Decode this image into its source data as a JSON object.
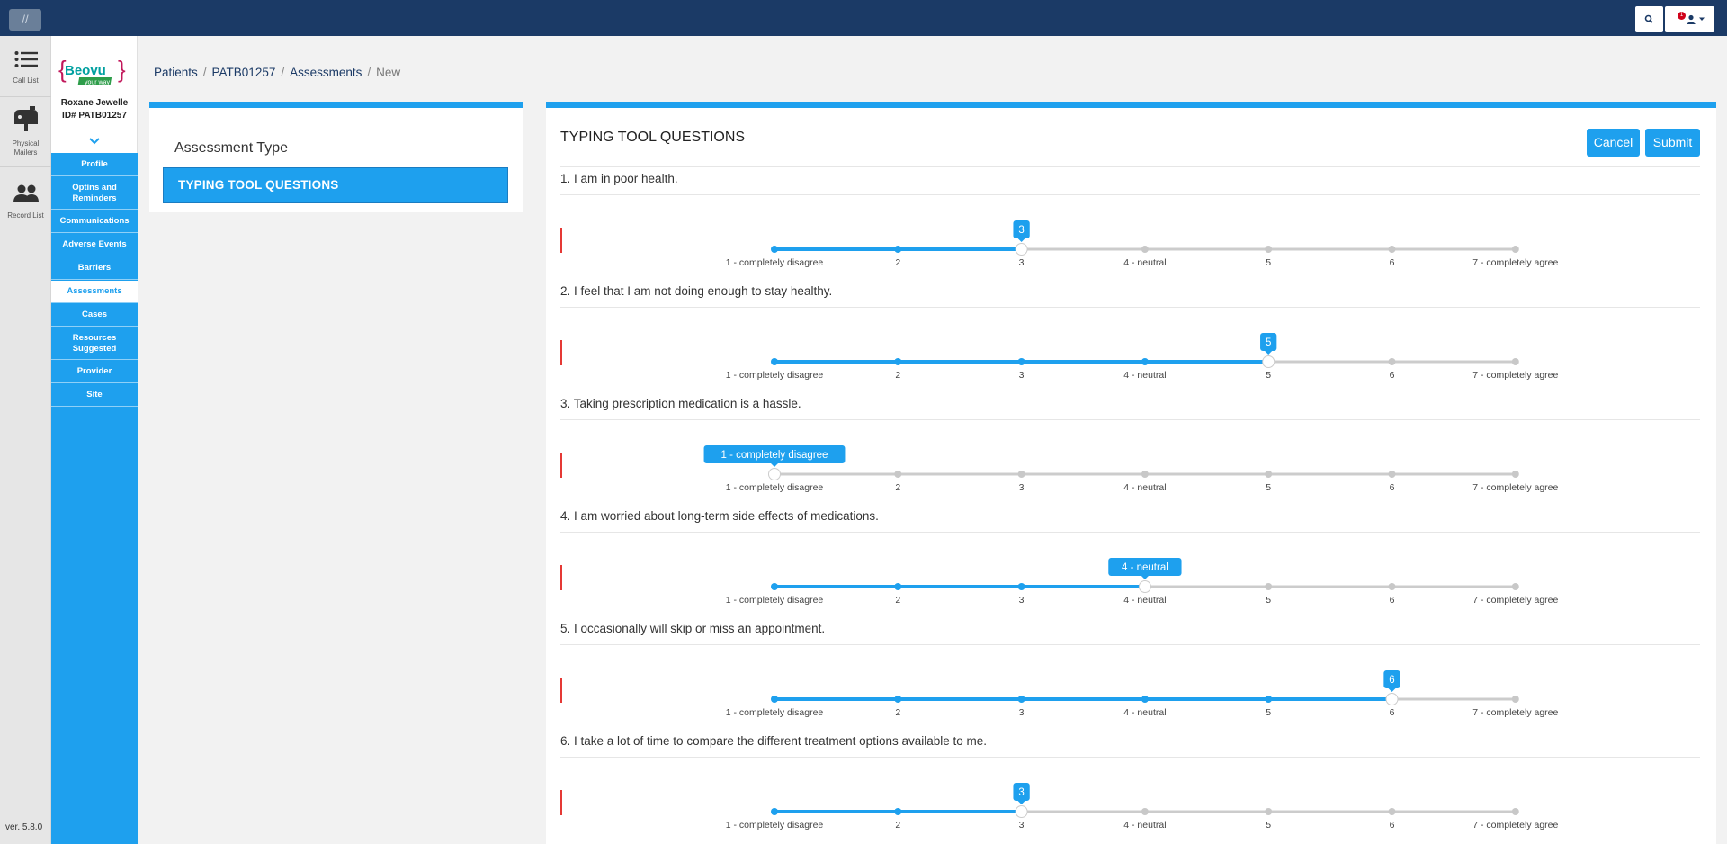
{
  "topbar": {
    "logo_glyph": "//",
    "search_icon": "search-icon",
    "user_icon": "user-icon",
    "notification_count": "1"
  },
  "rail": {
    "items": [
      {
        "label": "Call List",
        "icon": "list-icon"
      },
      {
        "label": "Physical Mailers",
        "icon": "mailbox-icon"
      },
      {
        "label": "Record List",
        "icon": "people-icon"
      }
    ],
    "version": "ver. 5.8.0"
  },
  "patient": {
    "brand": "Beovu",
    "brand_tag": "your way",
    "name": "Roxane Jewelle",
    "id": "ID# PATB01257",
    "nav": [
      {
        "label": "Profile"
      },
      {
        "label": "Optins and Reminders"
      },
      {
        "label": "Communications"
      },
      {
        "label": "Adverse Events"
      },
      {
        "label": "Barriers"
      },
      {
        "label": "Assessments",
        "active": true
      },
      {
        "label": "Cases"
      },
      {
        "label": "Resources Suggested"
      },
      {
        "label": "Provider"
      },
      {
        "label": "Site"
      }
    ]
  },
  "breadcrumb": {
    "items": [
      "Patients",
      "PATB01257",
      "Assessments"
    ],
    "current": "New"
  },
  "assessment_type": {
    "title": "Assessment Type",
    "selected": "TYPING TOOL QUESTIONS"
  },
  "questions_panel": {
    "title": "TYPING TOOL QUESTIONS",
    "cancel_label": "Cancel",
    "submit_label": "Submit",
    "scale_labels": [
      "1 - completely disagree",
      "2",
      "3",
      "4 - neutral",
      "5",
      "6",
      "7 - completely agree"
    ],
    "colors": {
      "accent": "#1ea0ee",
      "track": "#cccccc",
      "required": "#e53935"
    },
    "questions": [
      {
        "text": "1. I am in poor health.",
        "value": 3
      },
      {
        "text": "2. I feel that I am not doing enough to stay healthy.",
        "value": 5
      },
      {
        "text": "3. Taking prescription medication is a hassle.",
        "value": 1
      },
      {
        "text": "4. I am worried about long-term side effects of medications.",
        "value": 4
      },
      {
        "text": "5. I occasionally will skip or miss an appointment.",
        "value": 6
      },
      {
        "text": "6. I take a lot of time to compare the different treatment options available to me.",
        "value": 3
      }
    ]
  }
}
